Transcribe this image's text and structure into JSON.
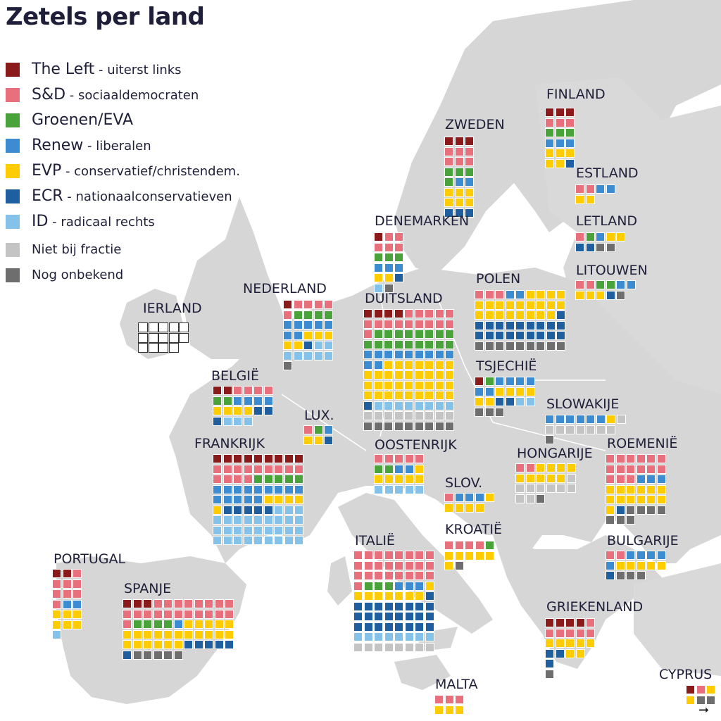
{
  "title": "Zetels per land",
  "colors": {
    "left": "#8b1a1a",
    "sd": "#e8707c",
    "green": "#4aa33a",
    "renew": "#3d8bd1",
    "evp": "#ffcc00",
    "ecr": "#1f5fa0",
    "id": "#84c2ea",
    "nf": "#c4c4c4",
    "unk": "#6e6e6e"
  },
  "legend": [
    {
      "key": "left",
      "name": "The Left",
      "desc": "- uiterst links"
    },
    {
      "key": "sd",
      "name": "S&D",
      "desc": "- sociaaldemocraten"
    },
    {
      "key": "green",
      "name": "Groenen/EVA",
      "desc": ""
    },
    {
      "key": "renew",
      "name": "Renew",
      "desc": "- liberalen"
    },
    {
      "key": "evp",
      "name": "EVP",
      "desc": "- conservatief/christendem."
    },
    {
      "key": "ecr",
      "name": "ECR",
      "desc": "- nationaalconservatieven"
    },
    {
      "key": "id",
      "name": "ID",
      "desc": "- radicaal rechts"
    },
    {
      "key": "nf",
      "name": "Niet bij fractie",
      "desc": ""
    },
    {
      "key": "unk",
      "name": "Nog onbekend",
      "desc": ""
    }
  ],
  "countries": [
    {
      "name": "FINLAND",
      "cols": 3,
      "rows": [
        "left,left,left",
        "sd,sd,sd",
        "green,green,green",
        "renew,renew,renew",
        "evp,evp,evp",
        "evp,evp,ecr"
      ]
    },
    {
      "name": "ZWEDEN",
      "cols": 3,
      "rows": [
        "left,left,left",
        "sd,sd,sd",
        "sd,sd,sd",
        "green,green,green",
        "green,renew,renew",
        "evp,evp,evp",
        "evp,evp,evp",
        "ecr,ecr,ecr"
      ]
    },
    {
      "name": "ESTLAND",
      "cols": 4,
      "rows": [
        "sd,sd,renew,renew",
        "evp,evp"
      ]
    },
    {
      "name": "LETLAND",
      "cols": 5,
      "rows": [
        "sd,green,renew,evp,evp",
        "ecr,ecr,unk,unk"
      ]
    },
    {
      "name": "DENEMARKEN",
      "cols": 3,
      "rows": [
        "left,sd,sd",
        "sd,sd,sd",
        "green,green,green",
        "renew,renew,renew",
        "evp,evp,ecr",
        "id,unk"
      ]
    },
    {
      "name": "LITOUWEN",
      "cols": 6,
      "rows": [
        "sd,sd,green,green,renew,renew",
        "evp,evp,evp,ecr,unk"
      ]
    },
    {
      "name": "IERLAND",
      "cols": 5,
      "rows": [
        "empty,empty,empty,empty,empty",
        "empty,empty,empty,empty,empty",
        "empty,empty,empty,empty"
      ]
    },
    {
      "name": "NEDERLAND",
      "cols": 5,
      "rows": [
        "left,sd,sd,sd,sd",
        "sd,green,green,green,green",
        "renew,renew,renew,renew,renew",
        "renew,renew,evp,evp,evp",
        "evp,evp,ecr,id,id",
        "id,id,id,id,id",
        "unk"
      ]
    },
    {
      "name": "DUITSLAND",
      "cols": 9,
      "rows": [
        "left,left,left,left,sd,sd,sd,sd,sd",
        "sd,sd,sd,sd,sd,sd,sd,sd,sd",
        "sd,green,green,green,green,green,green,green,green",
        "green,green,green,green,green,green,green,green,green",
        "renew,renew,renew,renew,renew,renew,renew,renew,renew",
        "renew,renew,evp,evp,evp,evp,evp,evp,evp",
        "evp,evp,evp,evp,evp,evp,evp,evp,evp",
        "evp,evp,evp,evp,evp,evp,evp,evp,evp",
        "evp,evp,evp,evp,evp,evp,evp,evp,evp",
        "ecr,id,id,id,id,id,id,id,id",
        "nf,nf,nf,nf,nf,nf,nf,nf,nf",
        "unk,unk,unk,unk,unk,unk,unk,unk,unk"
      ]
    },
    {
      "name": "POLEN",
      "cols": 9,
      "rows": [
        "sd,sd,sd,renew,renew,evp,evp,evp,evp",
        "evp,evp,evp,evp,evp,evp,evp,evp,evp",
        "evp,evp,evp,evp,evp,evp,evp,evp,ecr",
        "ecr,ecr,ecr,ecr,ecr,ecr,ecr,ecr,ecr",
        "ecr,ecr,ecr,ecr,ecr,ecr,ecr,ecr,ecr",
        "unk,unk,unk,unk,unk,unk,unk,unk,unk"
      ]
    },
    {
      "name": "BELGIË",
      "cols": 6,
      "rows": [
        "left,left,sd,sd,sd,sd",
        "green,green,renew,renew,renew,renew",
        "evp,evp,evp,evp,ecr,ecr",
        "ecr,id,id,id"
      ]
    },
    {
      "name": "TSJECHIË",
      "cols": 6,
      "rows": [
        "left,green,renew,renew,renew,renew",
        "renew,renew,evp,evp,evp,evp",
        "evp,evp,ecr,ecr,id,id",
        "unk,unk,unk"
      ]
    },
    {
      "name": "LUX.",
      "cols": 3,
      "rows": [
        "sd,green,renew",
        "evp,evp,ecr"
      ]
    },
    {
      "name": "SLOWAKIJE",
      "cols": 8,
      "rows": [
        "renew,renew,renew,renew,renew,renew,evp,nf",
        "nf,nf,nf,nf,nf,nf,nf",
        "unk"
      ]
    },
    {
      "name": "FRANKRIJK",
      "cols": 9,
      "rows": [
        "left,left,left,left,left,left,left,left,left",
        "sd,sd,sd,sd,sd,sd,sd,sd,sd",
        "sd,sd,sd,sd,green,green,green,green,green",
        "renew,renew,renew,renew,renew,renew,renew,renew,renew",
        "renew,renew,renew,renew,renew,evp,evp,evp,evp",
        "evp,ecr,ecr,ecr,ecr,ecr,id,id,id",
        "id,id,id,id,id,id,id,id,id",
        "id,id,id,id,id,id,id,id,id",
        "id,id,id,id,id,id,id,id,id"
      ]
    },
    {
      "name": "OOSTENRIJK",
      "cols": 5,
      "rows": [
        "sd,sd,sd,sd,sd",
        "green,green,renew,renew,evp",
        "evp,evp,evp,evp,evp",
        "id,id,id,id,id"
      ]
    },
    {
      "name": "HONGARIJE",
      "cols": 6,
      "rows": [
        "sd,sd,evp,evp,evp,evp",
        "evp,evp,evp,evp,evp,nf",
        "nf,nf,nf,nf,nf,nf",
        "nf,nf,unk"
      ]
    },
    {
      "name": "ROEMENIË",
      "cols": 6,
      "rows": [
        "sd,sd,sd,sd,sd,sd",
        "sd,sd,sd,sd,sd,sd",
        "sd,sd,sd,renew,renew,renew",
        "evp,evp,evp,evp,evp,evp",
        "evp,evp,evp,evp,evp,evp",
        "evp,ecr,unk,unk,unk,unk",
        "unk,unk,unk"
      ]
    },
    {
      "name": "SLOV.",
      "cols": 5,
      "rows": [
        "sd,renew,renew,renew,evp",
        "evp,evp,evp,evp"
      ]
    },
    {
      "name": "KROATIË",
      "cols": 5,
      "rows": [
        "sd,sd,sd,sd,green",
        "evp,evp,evp,evp,evp",
        "evp,unk"
      ]
    },
    {
      "name": "ITALIË",
      "cols": 8,
      "rows": [
        "sd,sd,sd,sd,sd,sd,sd,sd",
        "sd,sd,sd,sd,sd,sd,sd,sd",
        "sd,sd,sd,sd,sd,sd,sd,sd",
        "sd,green,green,green,renew,renew,renew,evp",
        "evp,evp,evp,evp,evp,evp,evp,ecr",
        "ecr,ecr,ecr,ecr,ecr,ecr,ecr,ecr",
        "ecr,ecr,ecr,ecr,ecr,ecr,ecr,ecr",
        "ecr,ecr,ecr,ecr,ecr,ecr,ecr,ecr",
        "id,id,id,id,id,id,id,id",
        "nf,nf,nf,nf,nf,nf,nf,nf"
      ]
    },
    {
      "name": "BULGARIJE",
      "cols": 6,
      "rows": [
        "sd,sd,renew,renew,renew,renew",
        "renew,evp,evp,evp,evp,evp",
        "ecr,unk,unk,unk"
      ]
    },
    {
      "name": "PORTUGAL",
      "cols": 3,
      "rows": [
        "left,left,sd",
        "sd,sd,sd",
        "sd,sd,sd",
        "sd,renew,renew",
        "evp,evp,evp",
        "evp,evp,evp",
        "id"
      ]
    },
    {
      "name": "SPANJE",
      "cols": 11,
      "rows": [
        "left,left,left,sd,sd,sd,sd,sd,sd,sd,sd",
        "sd,sd,sd,sd,sd,sd,sd,sd,sd,sd,sd",
        "sd,green,green,green,green,renew,evp,evp,evp,evp,evp",
        "evp,evp,evp,evp,evp,evp,evp,evp,evp,evp,evp",
        "evp,evp,evp,evp,evp,evp,ecr,ecr,ecr,ecr,ecr",
        "ecr,unk,unk,unk,unk,unk"
      ]
    },
    {
      "name": "GRIEKENLAND",
      "cols": 5,
      "rows": [
        "left,left,left,left,sd",
        "sd,sd,sd,sd,sd",
        "evp,evp,evp,evp,evp",
        "ecr,ecr,evp,evp",
        "ecr",
        "unk"
      ]
    },
    {
      "name": "MALTA",
      "cols": 3,
      "rows": [
        "sd,sd,sd",
        "evp,evp,evp"
      ]
    },
    {
      "name": "CYPRUS",
      "cols": 3,
      "rows": [
        "left,sd,evp",
        "evp,unk,unk"
      ]
    }
  ]
}
